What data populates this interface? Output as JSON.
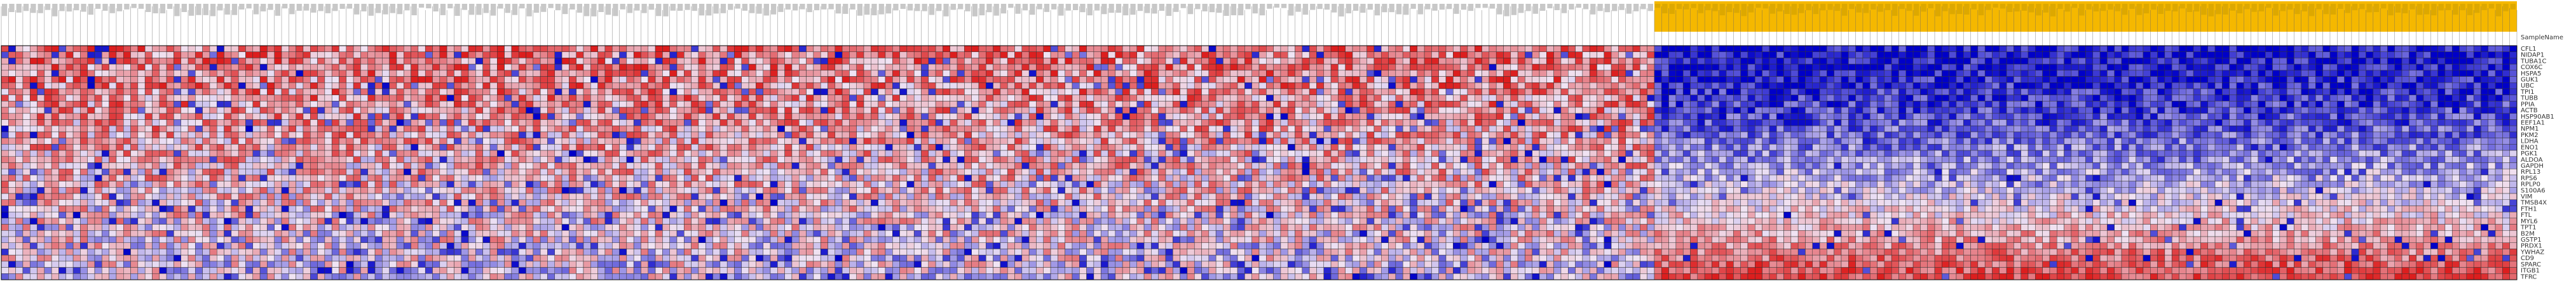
{
  "chart_data": {
    "type": "heatmap",
    "corner_label": "SampleName",
    "row_labels": [
      "CFL1",
      "NIDAP1",
      "TUBA1C",
      "COX6C",
      "HSPA5",
      "GUK1",
      "UBC",
      "TPI1",
      "TUBB",
      "PPIA",
      "ACTB",
      "HSP90AB1",
      "EEF1A1",
      "NPM1",
      "PKM2",
      "LDHA",
      "ENO1",
      "PGK1",
      "ALDOA",
      "GAPDH",
      "RPL13",
      "RPS6",
      "RPLP0",
      "S100A6",
      "VIM",
      "TMSB4X",
      "FTH1",
      "FTL",
      "MYL6",
      "TPT1",
      "B2M",
      "GSTP1",
      "PRDX1",
      "YWHAZ",
      "CD9",
      "SPARC",
      "ITGB1",
      "TFRC"
    ],
    "group_1_count": 230,
    "group_2_count": 120,
    "values_encoding": "per-row z-score, red = high, blue = low (values in 0..1 color scale)",
    "colors": {
      "low": "#0000c8",
      "mid": "#f0e4f4",
      "high": "#dc1e1e",
      "group_header": "#f5b800",
      "grid": "#333333"
    }
  }
}
